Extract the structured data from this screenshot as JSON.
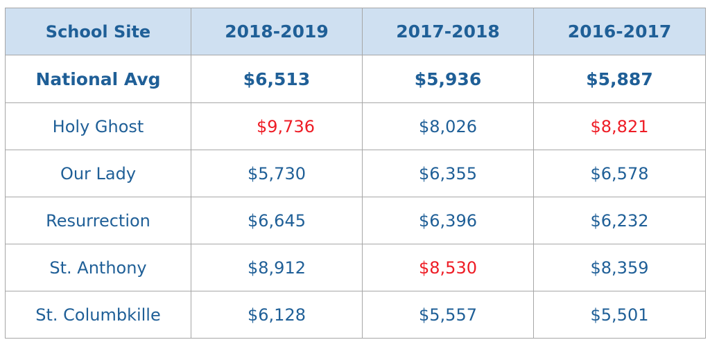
{
  "table": {
    "headers": [
      "School Site",
      "2018-2019",
      "2017-2018",
      "2016-2017"
    ],
    "national_avg": {
      "site": "National Avg",
      "values": [
        "$6,513",
        "$5,936",
        "$5,887"
      ]
    },
    "rows": [
      {
        "site": "Holy Ghost",
        "values": [
          "$9,736",
          "$8,026",
          "$8,821"
        ]
      },
      {
        "site": "Our Lady",
        "values": [
          "$5,730",
          "$6,355",
          "$6,578"
        ]
      },
      {
        "site": "Resurrection",
        "values": [
          "$6,645",
          "$6,396",
          "$6,232"
        ]
      },
      {
        "site": "St. Anthony",
        "values": [
          "$8,912",
          "$8,530",
          "$8,359"
        ]
      },
      {
        "site": "St. Columbkille",
        "values": [
          "$6,128",
          "$5,557",
          "$5,501"
        ]
      }
    ]
  },
  "colors": {
    "header_background": "#cfe0f1",
    "text": "#1f5f97",
    "highlight": "#ee1c25",
    "border": "#a6a6a6"
  }
}
